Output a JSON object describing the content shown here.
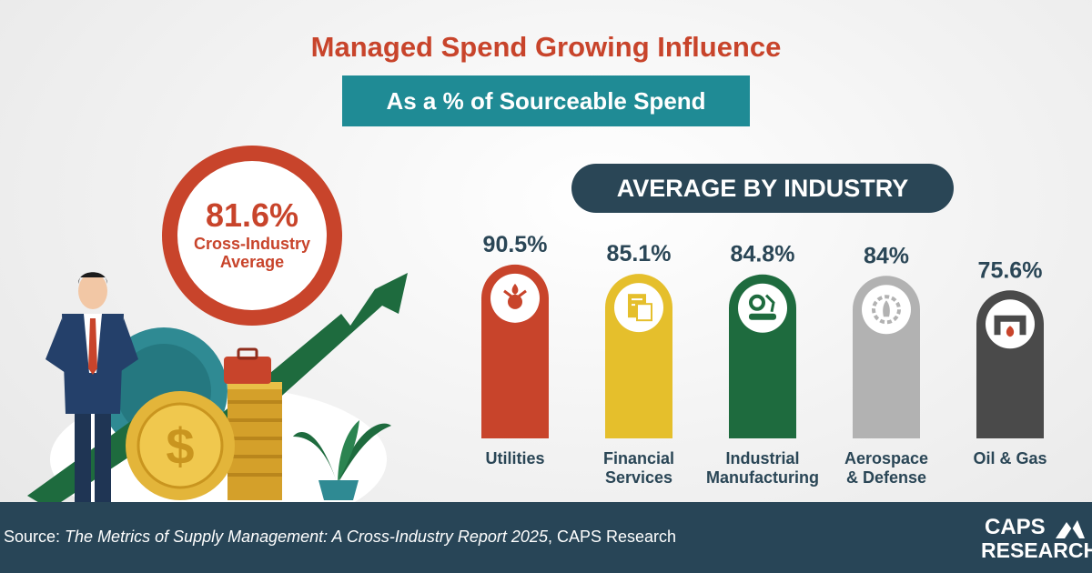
{
  "title": "Managed Spend Growing Influence",
  "subtitle": "As a % of Sourceable Spend",
  "overall": {
    "value": "81.6%",
    "label": "Cross-Industry Average"
  },
  "panel_heading": "AVERAGE BY INDUSTRY",
  "chart_data": {
    "type": "bar",
    "title": "AVERAGE BY INDUSTRY",
    "categories": [
      "Utilities",
      "Financial Services",
      "Industrial Manufacturing",
      "Aerospace & Defense",
      "Oil & Gas"
    ],
    "category_lines": [
      [
        "Utilities"
      ],
      [
        "Financial",
        "Services"
      ],
      [
        "Industrial",
        "Manufacturing"
      ],
      [
        "Aerospace",
        "& Defense"
      ],
      [
        "Oil & Gas"
      ]
    ],
    "values": [
      90.5,
      85.1,
      84.8,
      84,
      75.6
    ],
    "value_labels": [
      "90.5%",
      "85.1%",
      "84.8%",
      "84%",
      "75.6%"
    ],
    "colors": [
      "#c8442b",
      "#e5bf2c",
      "#1e6b3e",
      "#b2b2b2",
      "#4a4a4a"
    ],
    "icons": [
      "utilities-icon",
      "financial-documents-icon",
      "factory-conveyor-icon",
      "rocket-gear-icon",
      "oil-pipeline-icon"
    ],
    "ylim": [
      0,
      100
    ],
    "grid": false,
    "legend": "none"
  },
  "footer": {
    "source_prefix": "Source: ",
    "source_title": "The Metrics of Supply Management: A Cross-Industry Report 2025",
    "source_suffix": ", CAPS Research",
    "logo_top": "CAPS",
    "logo_bottom": "RESEARCH"
  }
}
